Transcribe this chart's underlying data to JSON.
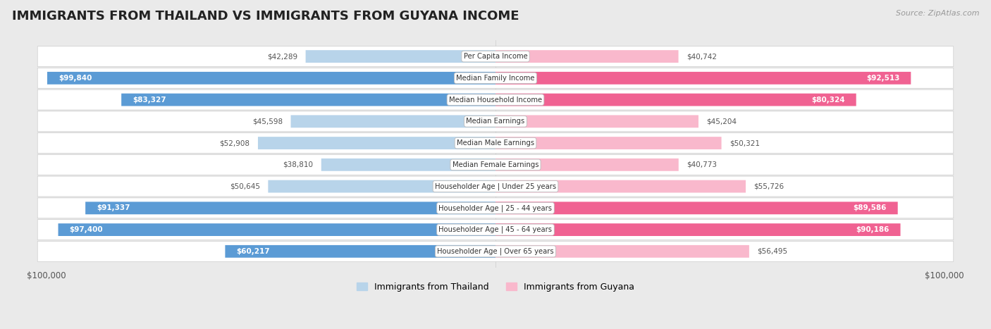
{
  "title": "IMMIGRANTS FROM THAILAND VS IMMIGRANTS FROM GUYANA INCOME",
  "source": "Source: ZipAtlas.com",
  "categories": [
    "Per Capita Income",
    "Median Family Income",
    "Median Household Income",
    "Median Earnings",
    "Median Male Earnings",
    "Median Female Earnings",
    "Householder Age | Under 25 years",
    "Householder Age | 25 - 44 years",
    "Householder Age | 45 - 64 years",
    "Householder Age | Over 65 years"
  ],
  "thailand_values": [
    42289,
    99840,
    83327,
    45598,
    52908,
    38810,
    50645,
    91337,
    97400,
    60217
  ],
  "guyana_values": [
    40742,
    92513,
    80324,
    45204,
    50321,
    40773,
    55726,
    89586,
    90186,
    56495
  ],
  "thailand_color_light": "#b8d4ea",
  "thailand_color_dark": "#5b9bd5",
  "guyana_color_light": "#f9b8cc",
  "guyana_color_dark": "#f06292",
  "thailand_label": "Immigrants from Thailand",
  "guyana_label": "Immigrants from Guyana",
  "max_value": 100000,
  "background_color": "#eaeaea",
  "row_bg_color": "#ffffff",
  "title_fontsize": 13,
  "axis_label": "$100,000",
  "inside_label_color": "#ffffff",
  "outside_label_color": "#555555",
  "inside_threshold": 60000
}
